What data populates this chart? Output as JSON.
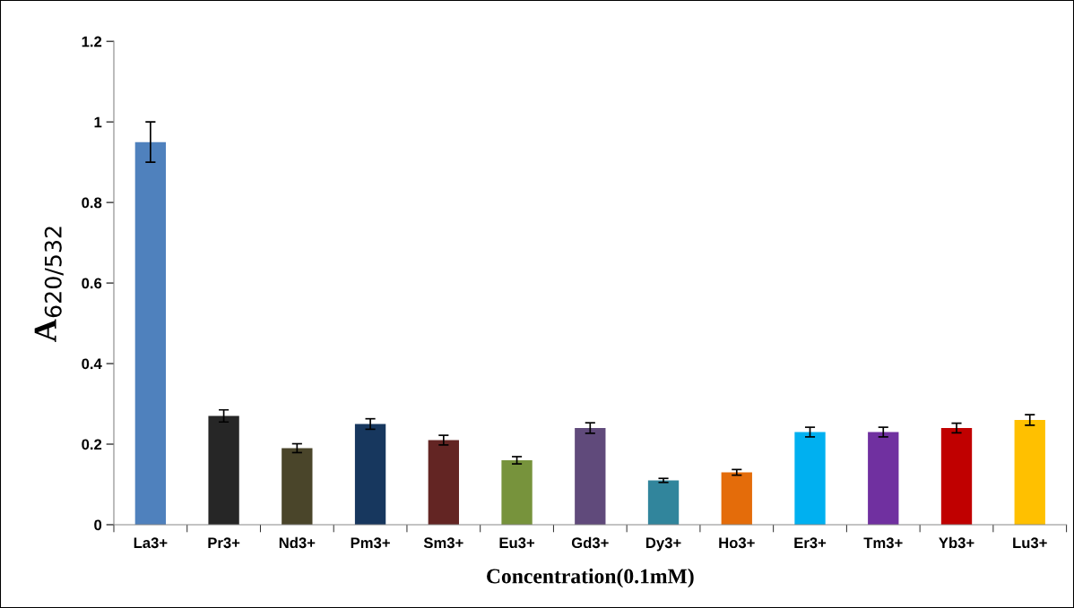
{
  "chart_data": {
    "type": "bar",
    "xlabel": "Concentration(0.1mM)",
    "ylabel": "A$_{620/532}$",
    "categories": [
      "La3+",
      "Pr3+",
      "Nd3+",
      "Pm3+",
      "Sm3+",
      "Eu3+",
      "Gd3+",
      "Dy3+",
      "Ho3+",
      "Er3+",
      "Tm3+",
      "Yb3+",
      "Lu3+"
    ],
    "values": [
      0.95,
      0.27,
      0.19,
      0.25,
      0.21,
      0.16,
      0.24,
      0.11,
      0.13,
      0.23,
      0.23,
      0.24,
      0.26
    ],
    "errors": [
      0.05,
      0.015,
      0.011,
      0.013,
      0.012,
      0.009,
      0.013,
      0.005,
      0.007,
      0.012,
      0.012,
      0.012,
      0.013
    ],
    "colors": [
      "#4f81bd",
      "#262626",
      "#4a452a",
      "#17375e",
      "#632523",
      "#77933c",
      "#604a7b",
      "#31859c",
      "#e46c0a",
      "#00b0f0",
      "#7030a0",
      "#c00000",
      "#ffc000"
    ],
    "ylim": [
      0,
      1.2
    ],
    "yticks": [
      0,
      0.2,
      0.4,
      0.6,
      0.8,
      1,
      1.2
    ],
    "grid": false,
    "legend": false
  }
}
